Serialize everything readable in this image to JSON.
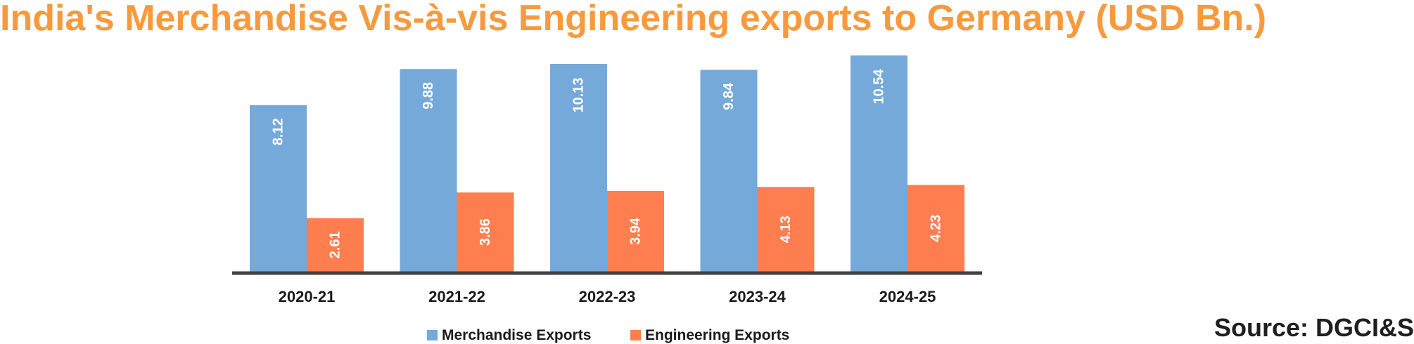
{
  "chart_data": {
    "type": "bar",
    "title": "India's Merchandise Vis-à-vis Engineering exports to Germany (USD Bn.)",
    "categories": [
      "2020-21",
      "2021-22",
      "2022-23",
      "2023-24",
      "2024-25"
    ],
    "series": [
      {
        "name": "Merchandise Exports",
        "color": "#75A9DA",
        "values": [
          8.12,
          9.88,
          10.13,
          9.84,
          10.54
        ],
        "labels": [
          "8.12",
          "9.88",
          "10.13",
          "9.84",
          "10.54"
        ]
      },
      {
        "name": "Engineering Exports",
        "color": "#FF7E4F",
        "values": [
          2.61,
          3.86,
          3.94,
          4.13,
          4.23
        ],
        "labels": [
          "2.61",
          "3.86",
          "3.94",
          "4.13",
          "4.23"
        ]
      }
    ],
    "xlabel": "",
    "ylabel": "",
    "ylim": [
      0,
      10.54
    ],
    "grid": false,
    "legend_position": "bottom-center",
    "data_label_orientation": "vertical"
  },
  "colors": {
    "title": "#F79A3E",
    "axis": "#404040",
    "tick_text": "#1a1a1a",
    "data_label": "#ffffff"
  },
  "source": "Source: DGCI&S"
}
